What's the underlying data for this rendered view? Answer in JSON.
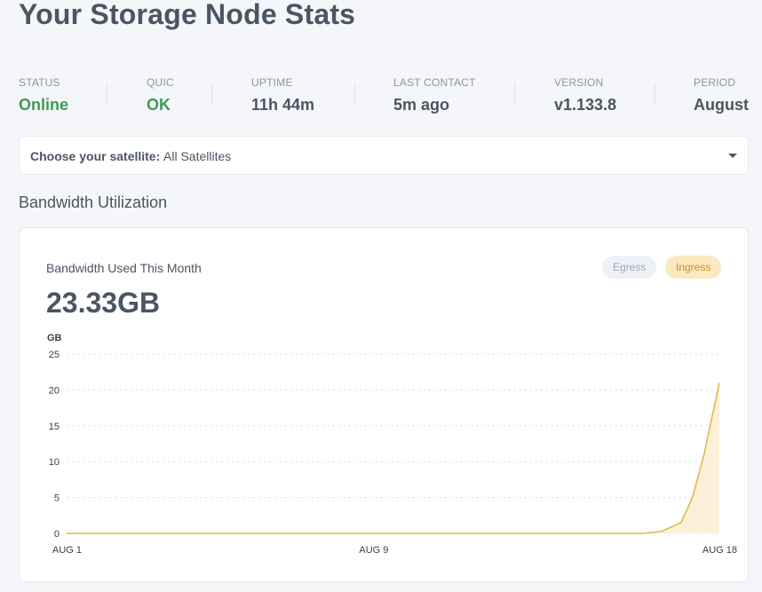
{
  "page": {
    "title": "Your Storage Node Stats"
  },
  "stats": [
    {
      "label": "STATUS",
      "value": "Online",
      "ok": true
    },
    {
      "label": "QUIC",
      "value": "OK",
      "ok": true
    },
    {
      "label": "UPTIME",
      "value": "11h 44m",
      "ok": false
    },
    {
      "label": "LAST CONTACT",
      "value": "5m ago",
      "ok": false
    },
    {
      "label": "VERSION",
      "value": "v1.133.8",
      "ok": false
    },
    {
      "label": "PERIOD",
      "value": "August",
      "ok": false
    }
  ],
  "satellite": {
    "label": "Choose your satellite:",
    "value": "All Satellites"
  },
  "section": {
    "title": "Bandwidth Utilization"
  },
  "card": {
    "subtitle": "Bandwidth Used This Month",
    "amount": "23.33GB",
    "legend": {
      "egress": "Egress",
      "ingress": "Ingress"
    }
  },
  "colors": {
    "ok": "#3f9b55",
    "ingress_line": "#e1b54a",
    "ingress_fill": "#fdf0d8",
    "egress_pill": "#eef2f7",
    "ingress_pill": "#fde9c0"
  },
  "chart_data": {
    "type": "area",
    "unit": "GB",
    "ylim": [
      0,
      25
    ],
    "yticks": [
      0,
      5,
      10,
      15,
      20,
      25
    ],
    "x_labels": [
      "AUG 1",
      "AUG 9",
      "AUG 18"
    ],
    "grid": true,
    "series": [
      {
        "name": "Ingress",
        "x": [
          1,
          2,
          3,
          4,
          5,
          6,
          7,
          8,
          9,
          10,
          11,
          12,
          13,
          14,
          15,
          16,
          16.5,
          17,
          17.3,
          17.6,
          18
        ],
        "values": [
          0,
          0,
          0,
          0,
          0,
          0,
          0,
          0,
          0,
          0,
          0,
          0,
          0,
          0,
          0,
          0,
          0.3,
          1.5,
          5,
          11,
          21
        ]
      }
    ]
  }
}
